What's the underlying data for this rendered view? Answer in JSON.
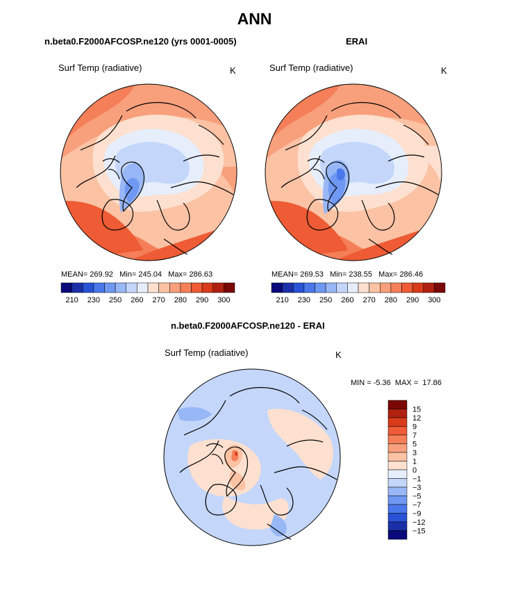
{
  "title": "ANN",
  "panels": {
    "model": {
      "subtitle": "n.beta0.F2000AFCOSP.ne120 (yrs 0001-0005)",
      "field_label": "Surf Temp (radiative)",
      "units": "K",
      "mean_label": "MEAN=",
      "mean": "269.92",
      "min_label": "Min=",
      "min": "245.04",
      "max_label": "Max=",
      "max": "286.63"
    },
    "obs": {
      "subtitle": "ERAI",
      "field_label": "Surf Temp (radiative)",
      "units": "K",
      "mean_label": "MEAN=",
      "mean": "269.53",
      "min_label": "Min=",
      "min": "238.55",
      "max_label": "Max=",
      "max": "286.46"
    },
    "diff": {
      "subtitle": "n.beta0.F2000AFCOSP.ne120 - ERAI",
      "field_label": "Surf Temp (radiative)",
      "units": "K",
      "min_label": "MIN =",
      "min": "-5.36",
      "max_label": "MAX =",
      "max": "17.86"
    }
  },
  "chart_data": [
    {
      "type": "heatmap",
      "projection": "north-polar-stereographic",
      "title": "n.beta0.F2000AFCOSP.ne120 (yrs 0001-0005)",
      "variable": "Surf Temp (radiative)",
      "units": "K",
      "stats": {
        "mean": 269.92,
        "min": 245.04,
        "max": 286.63
      },
      "colorbar": {
        "tick_labels": [
          "210",
          "230",
          "250",
          "260",
          "270",
          "280",
          "290",
          "300"
        ],
        "colors": [
          "#0a0a7a",
          "#1b2fa8",
          "#2a52d6",
          "#4a78ea",
          "#6f98f2",
          "#98b7f6",
          "#c4d6fa",
          "#e6eefc",
          "#fde0cf",
          "#fbc2a4",
          "#f8a07c",
          "#f47f58",
          "#ee5b34",
          "#d93a1a",
          "#b02010",
          "#7a0806"
        ]
      }
    },
    {
      "type": "heatmap",
      "projection": "north-polar-stereographic",
      "title": "ERAI",
      "variable": "Surf Temp (radiative)",
      "units": "K",
      "stats": {
        "mean": 269.53,
        "min": 238.55,
        "max": 286.46
      },
      "colorbar": {
        "tick_labels": [
          "210",
          "230",
          "250",
          "260",
          "270",
          "280",
          "290",
          "300"
        ],
        "colors": [
          "#0a0a7a",
          "#1b2fa8",
          "#2a52d6",
          "#4a78ea",
          "#6f98f2",
          "#98b7f6",
          "#c4d6fa",
          "#e6eefc",
          "#fde0cf",
          "#fbc2a4",
          "#f8a07c",
          "#f47f58",
          "#ee5b34",
          "#d93a1a",
          "#b02010",
          "#7a0806"
        ]
      }
    },
    {
      "type": "heatmap",
      "projection": "north-polar-stereographic",
      "title": "n.beta0.F2000AFCOSP.ne120 - ERAI",
      "variable": "Surf Temp (radiative)",
      "units": "K",
      "stats": {
        "min": -5.36,
        "max": 17.86
      },
      "colorbar": {
        "tick_labels": [
          "15",
          "12",
          "9",
          "7",
          "5",
          "3",
          "1",
          "0",
          "−1",
          "−3",
          "−5",
          "−7",
          "−9",
          "−12",
          "−15"
        ],
        "colors": [
          "#7a0806",
          "#b02010",
          "#d93a1a",
          "#ee5b34",
          "#f47f58",
          "#f8a07c",
          "#fbc2a4",
          "#fde0cf",
          "#e6eefc",
          "#c4d6fa",
          "#98b7f6",
          "#6f98f2",
          "#4a78ea",
          "#2a52d6",
          "#1b2fa8",
          "#0a0a7a"
        ]
      }
    }
  ]
}
